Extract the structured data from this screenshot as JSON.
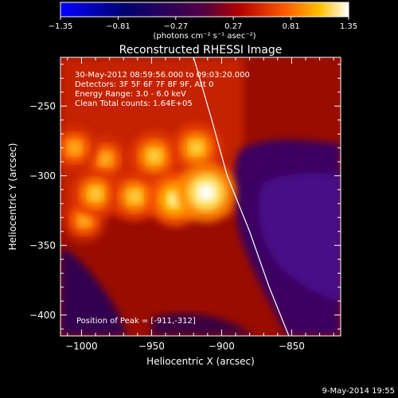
{
  "colorbar": {
    "ticks": [
      "-1.35",
      "-0.81",
      "-0.27",
      "0.27",
      "0.81",
      "1.35"
    ],
    "unit_label": "(photons cm⁻² s⁻¹ asec⁻²)",
    "range": [
      -1.35,
      1.35
    ]
  },
  "chart_data": {
    "type": "heatmap",
    "title": "Reconstructed RHESSI Image",
    "xlabel": "Heliocentric X (arcsec)",
    "ylabel": "Heliocentric Y (arcsec)",
    "xlim": [
      -1015,
      -815
    ],
    "ylim": [
      -415,
      -215
    ],
    "x_ticks": [
      -1000,
      -950,
      -900,
      -850
    ],
    "x_tick_labels": [
      "−1000",
      "−950",
      "−900",
      "−850"
    ],
    "y_ticks": [
      -400,
      -350,
      -300,
      -250
    ],
    "y_tick_labels": [
      "−400",
      "−350",
      "−300",
      "−250"
    ],
    "color_range": [
      -1.35,
      1.35
    ],
    "annotations": [
      "30-May-2012 08:59:56.000 to 09:03:20.000",
      "Detectors: 3F 5F 6F 7F 8F 9F, Att 0",
      "Energy Range: 3.0 - 6.0 keV",
      "Clean     Total counts: 1.64E+05"
    ],
    "peak_label": "Position of Peak = [-911,-312]",
    "peak": [
      -911,
      -312
    ],
    "sources": [
      {
        "x": -911,
        "y": -312,
        "value": 1.35
      },
      {
        "x": -933,
        "y": -317,
        "value": 1.1
      },
      {
        "x": -962,
        "y": -315,
        "value": 0.9
      },
      {
        "x": -990,
        "y": -313,
        "value": 0.85
      },
      {
        "x": -948,
        "y": -286,
        "value": 0.95
      },
      {
        "x": -983,
        "y": -288,
        "value": 0.8
      },
      {
        "x": -918,
        "y": -280,
        "value": 0.95
      },
      {
        "x": -1005,
        "y": -280,
        "value": 0.8
      },
      {
        "x": -998,
        "y": -332,
        "value": 0.7
      }
    ],
    "limb_curve": [
      [
        -920,
        -215
      ],
      [
        -907,
        -260
      ],
      [
        -896,
        -300
      ],
      [
        -880,
        -340
      ],
      [
        -866,
        -380
      ],
      [
        -852,
        -415
      ]
    ]
  },
  "footer": {
    "date": "9-May-2014 19:55"
  }
}
